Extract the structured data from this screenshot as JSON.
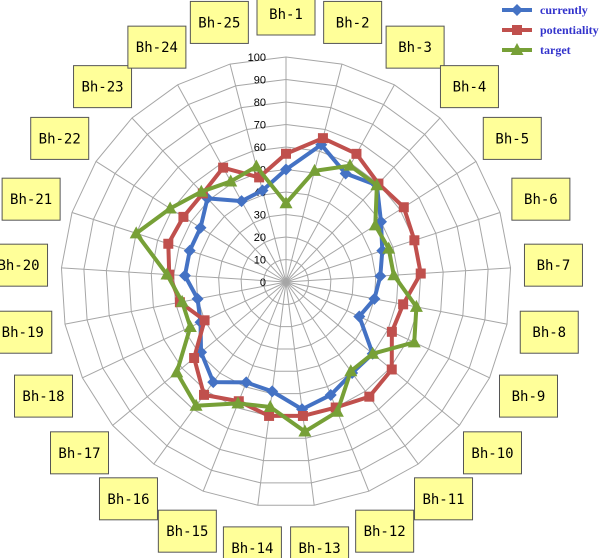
{
  "chart_data": {
    "type": "radar",
    "title": "",
    "categories": [
      "Bh-1",
      "Bh-2",
      "Bh-3",
      "Bh-4",
      "Bh-5",
      "Bh-6",
      "Bh-7",
      "Bh-8",
      "Bh-9",
      "Bh-10",
      "Bh-11",
      "Bh-12",
      "Bh-13",
      "Bh-14",
      "Bh-15",
      "Bh-16",
      "Bh-17",
      "Bh-18",
      "Bh-19",
      "Bh-20",
      "Bh-21",
      "Bh-22",
      "Bh-23",
      "Bh-24",
      "Bh-25"
    ],
    "rlim": [
      0,
      100
    ],
    "ticks": [
      "0",
      "10",
      "20",
      "30",
      "40",
      "50",
      "60",
      "70",
      "80",
      "90",
      "100"
    ],
    "grid": true,
    "legend": "top-right",
    "series": [
      {
        "name": "currently",
        "color": "#4472c4",
        "marker": "diamond",
        "values": [
          50,
          63,
          55,
          59,
          50,
          45,
          42,
          40,
          36,
          50,
          50,
          54,
          57,
          49,
          48,
          55,
          49,
          42,
          40,
          45,
          45,
          45,
          51,
          41,
          42
        ]
      },
      {
        "name": "potentiality",
        "color": "#c0504d",
        "marker": "square",
        "values": [
          57,
          66,
          65,
          60,
          62,
          60,
          60,
          53,
          52,
          61,
          63,
          60,
          60,
          60,
          57,
          62,
          53,
          40,
          48,
          52,
          55,
          54,
          54,
          58,
          48
        ]
      },
      {
        "name": "target",
        "color": "#77a037",
        "marker": "triangle",
        "values": [
          35,
          51,
          59,
          59,
          47,
          48,
          48,
          59,
          63,
          50,
          49,
          62,
          67,
          56,
          58,
          68,
          63,
          47,
          47,
          53,
          70,
          61,
          55,
          51,
          53
        ]
      }
    ]
  }
}
